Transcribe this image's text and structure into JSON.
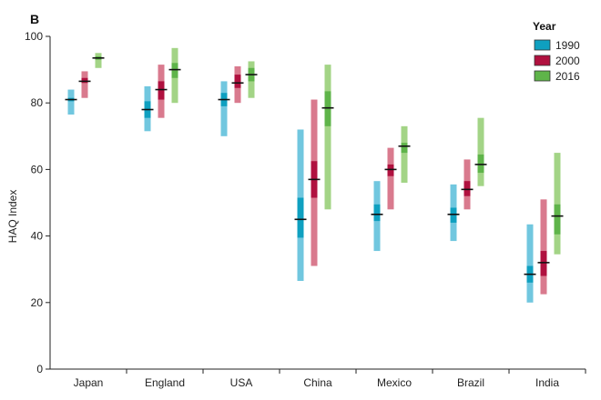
{
  "chart_data": {
    "type": "range-bars",
    "panel_label": "B",
    "ylabel": "HAQ Index",
    "ylim": [
      0,
      100
    ],
    "yticks": [
      0,
      20,
      40,
      60,
      80,
      100
    ],
    "categories": [
      "Japan",
      "England",
      "USA",
      "China",
      "Mexico",
      "Brazil",
      "India"
    ],
    "legend": {
      "title": "Year",
      "placement": "top-right"
    },
    "series": [
      {
        "name": "1990",
        "light_color": "#71c7df",
        "dark_color": "#0fa0c0",
        "points": [
          {
            "lo": 76.5,
            "hi": 84.0,
            "q1": 80.5,
            "q3": 81.5,
            "median": 81.0
          },
          {
            "lo": 71.5,
            "hi": 85.0,
            "q1": 75.5,
            "q3": 80.5,
            "median": 78.0
          },
          {
            "lo": 70.0,
            "hi": 86.5,
            "q1": 79.0,
            "q3": 83.0,
            "median": 81.0
          },
          {
            "lo": 26.5,
            "hi": 72.0,
            "q1": 39.5,
            "q3": 51.5,
            "median": 45.0
          },
          {
            "lo": 35.5,
            "hi": 56.5,
            "q1": 44.5,
            "q3": 49.5,
            "median": 46.5
          },
          {
            "lo": 38.5,
            "hi": 55.5,
            "q1": 44.0,
            "q3": 48.5,
            "median": 46.5
          },
          {
            "lo": 20.0,
            "hi": 43.5,
            "q1": 26.0,
            "q3": 31.0,
            "median": 28.5
          }
        ]
      },
      {
        "name": "2000",
        "light_color": "#d97a8e",
        "dark_color": "#b0113f",
        "points": [
          {
            "lo": 81.5,
            "hi": 89.5,
            "q1": 86.0,
            "q3": 87.5,
            "median": 86.5
          },
          {
            "lo": 75.5,
            "hi": 91.5,
            "q1": 81.0,
            "q3": 86.5,
            "median": 84.0
          },
          {
            "lo": 80.0,
            "hi": 91.0,
            "q1": 84.5,
            "q3": 88.5,
            "median": 86.0
          },
          {
            "lo": 31.0,
            "hi": 81.0,
            "q1": 51.5,
            "q3": 62.5,
            "median": 57.0
          },
          {
            "lo": 48.0,
            "hi": 66.5,
            "q1": 58.0,
            "q3": 61.5,
            "median": 60.0
          },
          {
            "lo": 48.0,
            "hi": 63.0,
            "q1": 52.0,
            "q3": 56.5,
            "median": 54.0
          },
          {
            "lo": 22.5,
            "hi": 51.0,
            "q1": 28.0,
            "q3": 35.5,
            "median": 32.0
          }
        ]
      },
      {
        "name": "2016",
        "light_color": "#a3d486",
        "dark_color": "#5fb44a",
        "points": [
          {
            "lo": 90.5,
            "hi": 95.0,
            "q1": 93.0,
            "q3": 94.0,
            "median": 93.5
          },
          {
            "lo": 80.0,
            "hi": 96.5,
            "q1": 87.5,
            "q3": 92.0,
            "median": 90.0
          },
          {
            "lo": 81.5,
            "hi": 92.5,
            "q1": 86.5,
            "q3": 90.5,
            "median": 88.5
          },
          {
            "lo": 48.0,
            "hi": 91.5,
            "q1": 73.0,
            "q3": 83.5,
            "median": 78.5
          },
          {
            "lo": 56.0,
            "hi": 73.0,
            "q1": 65.0,
            "q3": 68.0,
            "median": 67.0
          },
          {
            "lo": 55.0,
            "hi": 75.5,
            "q1": 59.0,
            "q3": 64.5,
            "median": 61.5
          },
          {
            "lo": 34.5,
            "hi": 65.0,
            "q1": 40.5,
            "q3": 49.5,
            "median": 46.0
          }
        ]
      }
    ]
  }
}
